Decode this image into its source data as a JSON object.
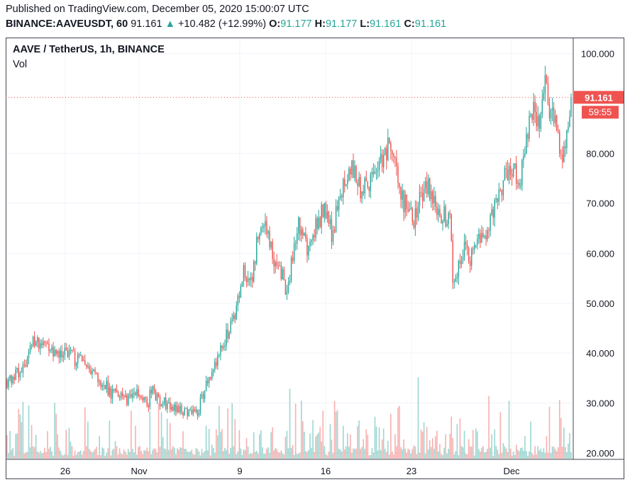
{
  "header": {
    "published": "Published on TradingView.com, December 05, 2020 15:00:07 UTC",
    "symbol": "BINANCE:AAVEUSDT, 60",
    "last": "91.161",
    "change_arrow": "▲",
    "change": "+10.482 (+12.99%)",
    "o_label": "O:",
    "o_value": "91.177",
    "h_label": "H:",
    "h_value": "91.177",
    "l_label": "L:",
    "l_value": "91.161",
    "c_label": "C:",
    "c_value": "91.161"
  },
  "legend": {
    "title": "AAVE / TetherUS, 1h, BINANCE",
    "volume": "Vol"
  },
  "price_tag": {
    "price": "91.161",
    "countdown": "59:55"
  },
  "colors": {
    "up": "#26a69a",
    "down": "#ef5350",
    "grid": "#f0f3fa",
    "axis": "#434651"
  },
  "chart_data": {
    "type": "candlestick",
    "title": "AAVE / TetherUS, 1h, BINANCE",
    "ylim": [
      20,
      100
    ],
    "y_ticks": [
      "100.000",
      "80.000",
      "70.000",
      "60.000",
      "50.000",
      "40.000",
      "30.000",
      "20.000"
    ],
    "x_ticks": [
      "26",
      "Nov",
      "9",
      "16",
      "23",
      "Dec"
    ],
    "last_price": 91.161,
    "price_path": [
      [
        0,
        34.5
      ],
      [
        5,
        36.5
      ],
      [
        9,
        42
      ],
      [
        12,
        42.6
      ],
      [
        16,
        40.8
      ],
      [
        22,
        39.5
      ],
      [
        26,
        38.0
      ],
      [
        30,
        35.5
      ],
      [
        34,
        33.8
      ],
      [
        36,
        32.0
      ],
      [
        39,
        31.0
      ],
      [
        42,
        30.5
      ],
      [
        45,
        32.2
      ],
      [
        49,
        29.5
      ],
      [
        50,
        33.0
      ],
      [
        52,
        31.0
      ],
      [
        55,
        30.0
      ],
      [
        60,
        28.5
      ],
      [
        64,
        28.0
      ],
      [
        66,
        27.5
      ],
      [
        67,
        30.0
      ],
      [
        70,
        35.0
      ],
      [
        73,
        38.5
      ],
      [
        76,
        43.0
      ],
      [
        79,
        47.0
      ],
      [
        82,
        56.0
      ],
      [
        85,
        55.0
      ],
      [
        88,
        66.5
      ],
      [
        90,
        65.0
      ],
      [
        92,
        60.0
      ],
      [
        95,
        57.0
      ],
      [
        97,
        52.0
      ],
      [
        99,
        58.0
      ],
      [
        101,
        66.0
      ],
      [
        103,
        63.0
      ],
      [
        105,
        60.0
      ],
      [
        107,
        65.0
      ],
      [
        110,
        68.5
      ],
      [
        113,
        64.0
      ],
      [
        115,
        70.0
      ],
      [
        118,
        76.0
      ],
      [
        121,
        76.5
      ],
      [
        123,
        72.0
      ],
      [
        126,
        74.0
      ],
      [
        128,
        76.0
      ],
      [
        131,
        80.0
      ],
      [
        133,
        81.0
      ],
      [
        136,
        75.0
      ],
      [
        138,
        70.0
      ],
      [
        141,
        66.0
      ],
      [
        144,
        72.0
      ],
      [
        146,
        73.0
      ],
      [
        149,
        70.0
      ],
      [
        151,
        68.0
      ],
      [
        154,
        66.0
      ],
      [
        155,
        52.0
      ],
      [
        157,
        59.0
      ],
      [
        159,
        62.0
      ],
      [
        161,
        58.5
      ],
      [
        164,
        62.0
      ],
      [
        166,
        64.0
      ],
      [
        168,
        67.0
      ],
      [
        171,
        71.0
      ],
      [
        173,
        75.0
      ],
      [
        176,
        78.0
      ],
      [
        178,
        73.0
      ],
      [
        180,
        80.0
      ],
      [
        181,
        85.0
      ],
      [
        183,
        89.0
      ],
      [
        185,
        86.0
      ],
      [
        187,
        93.0
      ],
      [
        189,
        88.0
      ],
      [
        191,
        84.0
      ],
      [
        193,
        80.0
      ],
      [
        195,
        86.0
      ],
      [
        196,
        91.161
      ]
    ]
  }
}
